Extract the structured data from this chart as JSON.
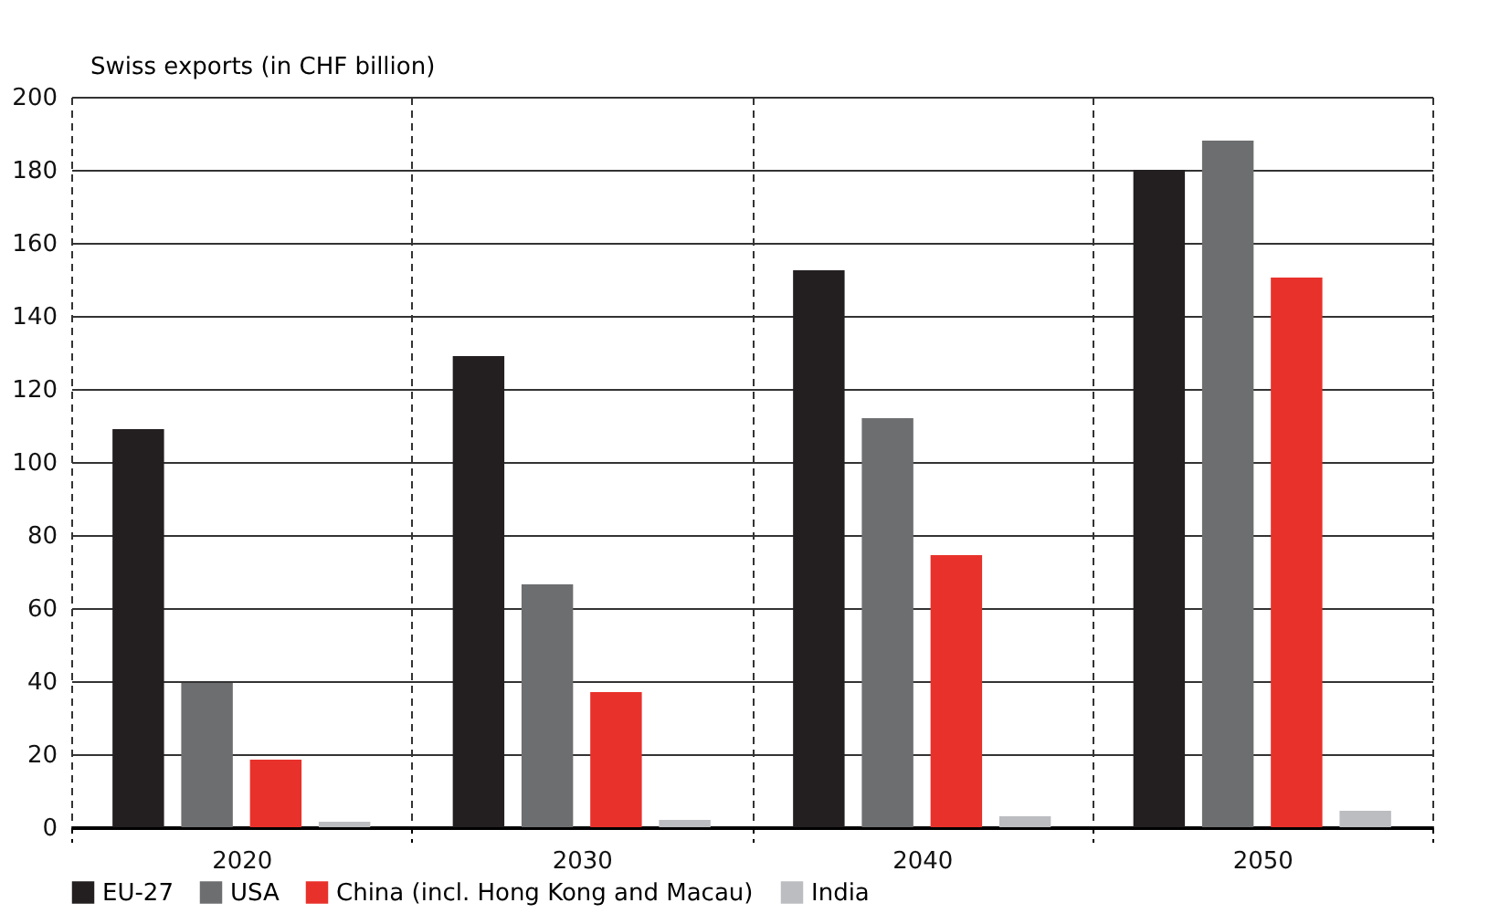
{
  "chart_data": {
    "type": "bar",
    "ylabel": "Swiss exports (in CHF billion)",
    "categories": [
      "2020",
      "2030",
      "2040",
      "2050"
    ],
    "series": [
      {
        "name": "EU-27",
        "color": "#231f20",
        "values": [
          109,
          129,
          152.5,
          180
        ]
      },
      {
        "name": "USA",
        "color": "#6d6e70",
        "values": [
          39.5,
          66.5,
          112,
          188
        ]
      },
      {
        "name": "China (incl. Hong Kong and Macau)",
        "color": "#e8312a",
        "values": [
          18.5,
          37,
          74.5,
          150.5
        ]
      },
      {
        "name": "India",
        "color": "#bcbdc0",
        "values": [
          1.5,
          2,
          3,
          4.5
        ]
      }
    ],
    "ylim": [
      0,
      200
    ],
    "yticks": [
      0,
      20,
      40,
      60,
      80,
      100,
      120,
      140,
      160,
      180,
      200
    ],
    "grid": true,
    "legend": "bottom"
  }
}
